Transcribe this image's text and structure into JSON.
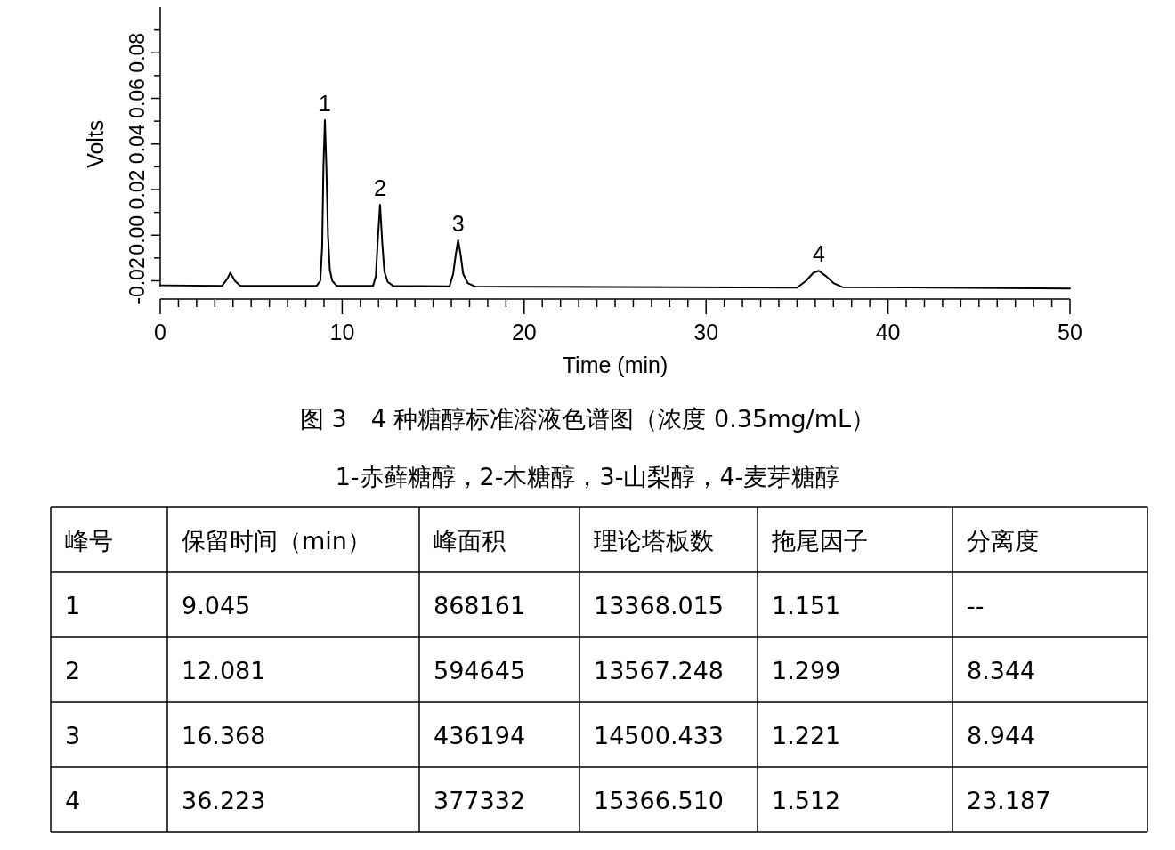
{
  "chart_data": {
    "type": "line",
    "xlabel": "Time (min)",
    "ylabel": "Volts",
    "xlim": [
      0,
      50
    ],
    "ylim": [
      -0.028,
      0.1
    ],
    "xticks": [
      0,
      {
        "value": 1,
        "label": null
      },
      {
        "value": 2,
        "label": null
      },
      {
        "value": 3,
        "label": null
      },
      {
        "value": 4,
        "label": null
      },
      {
        "value": 5,
        "label": null
      },
      {
        "value": 6,
        "label": null
      },
      {
        "value": 7,
        "label": null
      },
      {
        "value": 8,
        "label": null
      },
      {
        "value": 9,
        "label": null
      },
      10,
      {
        "value": 11,
        "label": null
      },
      {
        "value": 12,
        "label": null
      },
      {
        "value": 13,
        "label": null
      },
      {
        "value": 14,
        "label": null
      },
      {
        "value": 15,
        "label": null
      },
      {
        "value": 16,
        "label": null
      },
      {
        "value": 17,
        "label": null
      },
      {
        "value": 18,
        "label": null
      },
      {
        "value": 19,
        "label": null
      },
      20,
      {
        "value": 21,
        "label": null
      },
      {
        "value": 22,
        "label": null
      },
      {
        "value": 23,
        "label": null
      },
      {
        "value": 24,
        "label": null
      },
      {
        "value": 25,
        "label": null
      },
      {
        "value": 26,
        "label": null
      },
      {
        "value": 27,
        "label": null
      },
      {
        "value": 28,
        "label": null
      },
      {
        "value": 29,
        "label": null
      },
      30,
      {
        "value": 31,
        "label": null
      },
      {
        "value": 32,
        "label": null
      },
      {
        "value": 33,
        "label": null
      },
      {
        "value": 34,
        "label": null
      },
      {
        "value": 35,
        "label": null
      },
      {
        "value": 36,
        "label": null
      },
      {
        "value": 37,
        "label": null
      },
      {
        "value": 38,
        "label": null
      },
      {
        "value": 39,
        "label": null
      },
      40,
      {
        "value": 41,
        "label": null
      },
      {
        "value": 42,
        "label": null
      },
      {
        "value": 43,
        "label": null
      },
      {
        "value": 44,
        "label": null
      },
      {
        "value": 45,
        "label": null
      },
      {
        "value": 46,
        "label": null
      },
      {
        "value": 47,
        "label": null
      },
      {
        "value": 48,
        "label": null
      },
      {
        "value": 49,
        "label": null
      },
      50
    ],
    "yticks": [
      {
        "value": -0.02,
        "label": "-0.02"
      },
      {
        "value": -0.01,
        "label": null
      },
      {
        "value": 0,
        "label": "0.00"
      },
      {
        "value": 0.01,
        "label": null
      },
      {
        "value": 0.02,
        "label": "0.02"
      },
      {
        "value": 0.03,
        "label": null
      },
      {
        "value": 0.04,
        "label": "0.04"
      },
      {
        "value": 0.05,
        "label": null
      },
      {
        "value": 0.06,
        "label": "0.06"
      },
      {
        "value": 0.07,
        "label": null
      },
      {
        "value": 0.08,
        "label": "0.08"
      },
      {
        "value": 0.09,
        "label": null
      }
    ],
    "grid": false,
    "marker": "none",
    "line_style": "solid",
    "series": [
      {
        "color": "#000000",
        "x": [
          0,
          3.4,
          3.7,
          3.85,
          4.1,
          4.4,
          8.6,
          8.8,
          8.9,
          8.97,
          9.05,
          9.13,
          9.22,
          9.32,
          9.45,
          9.7,
          11.7,
          11.85,
          11.95,
          12.08,
          12.2,
          12.32,
          12.5,
          12.8,
          15.9,
          16.1,
          16.25,
          16.37,
          16.5,
          16.65,
          16.9,
          17.3,
          35.0,
          35.5,
          35.9,
          36.2,
          36.6,
          37.0,
          37.5,
          50
        ],
        "values": [
          -0.022,
          -0.0222,
          -0.019,
          -0.0165,
          -0.02,
          -0.0222,
          -0.0222,
          -0.02,
          -0.005,
          0.03,
          0.0504,
          0.03,
          0,
          -0.015,
          -0.02,
          -0.0222,
          -0.0222,
          -0.018,
          -0.003,
          0.0134,
          -0.003,
          -0.016,
          -0.0205,
          -0.0222,
          -0.0224,
          -0.017,
          -0.008,
          -0.0022,
          -0.008,
          -0.017,
          -0.021,
          -0.0225,
          -0.023,
          -0.02,
          -0.0165,
          -0.0156,
          -0.018,
          -0.021,
          -0.0228,
          -0.0234
        ]
      }
    ],
    "annotations": [
      {
        "text": "1",
        "x": 9.05,
        "y": 0.0504
      },
      {
        "text": "2",
        "x": 12.08,
        "y": 0.0134
      },
      {
        "text": "3",
        "x": 16.37,
        "y": -0.0022
      },
      {
        "text": "4",
        "x": 36.2,
        "y": -0.0156
      },
      "图 3　4 种糖醇标准溶液色谱图（浓度 0.35mg/mL）",
      "1-赤藓糖醇，2-木糖醇，3-山梨醇，4-麦芽糖醇",
      "峰号",
      "保留时间（min）",
      "峰面积",
      "理论塔板数",
      "拖尾因子",
      "分离度",
      "1",
      "9.045",
      "868161",
      "13368.015",
      "1.151",
      "--",
      "2",
      "12.081",
      "594645",
      "13567.248",
      "1.299",
      "8.344",
      "3",
      "16.368",
      "436194",
      "14500.433",
      "1.221",
      "8.944",
      "4",
      "36.223",
      "377332",
      "15366.510",
      "1.512",
      "23.187"
    ]
  }
}
